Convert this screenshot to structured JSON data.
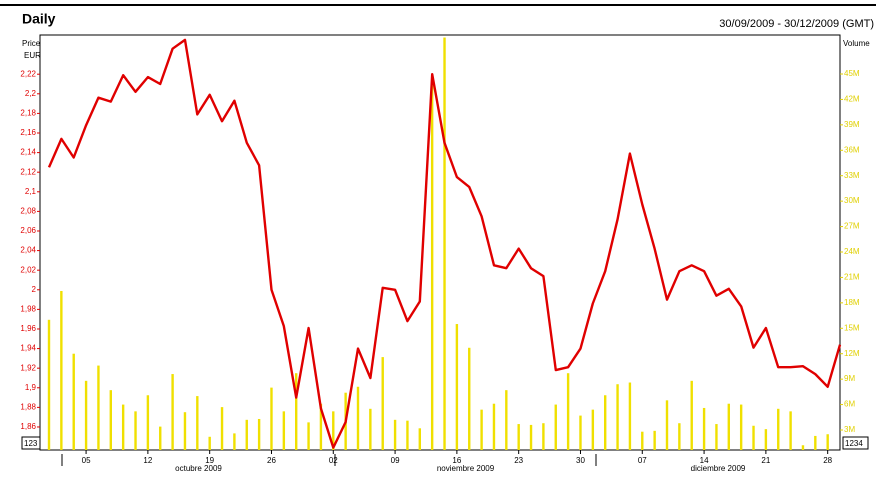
{
  "chart_data": {
    "type": "combo",
    "title": "Daily",
    "subtitle": "30/09/2009 - 30/12/2009 (GMT)",
    "y_unit": "EUR",
    "months": [
      "octubre 2009",
      "noviembre 2009",
      "diciembre 2009"
    ],
    "corner_labels": [
      "123",
      "1234"
    ],
    "categories": [
      null,
      null,
      null,
      "05",
      null,
      null,
      null,
      null,
      "12",
      null,
      null,
      null,
      null,
      "19",
      null,
      null,
      null,
      null,
      "26",
      null,
      null,
      null,
      null,
      "02",
      null,
      null,
      null,
      null,
      "09",
      null,
      null,
      null,
      null,
      "16",
      null,
      null,
      null,
      null,
      "23",
      null,
      null,
      null,
      null,
      "30",
      null,
      null,
      null,
      null,
      "07",
      null,
      null,
      null,
      null,
      "14",
      null,
      null,
      null,
      null,
      "21",
      null,
      null,
      null,
      null,
      "28",
      null
    ],
    "series": [
      {
        "name": "Price",
        "type": "line",
        "color": "#e00000",
        "values": [
          2.125,
          2.154,
          2.135,
          2.168,
          2.196,
          2.192,
          2.219,
          2.202,
          2.217,
          2.21,
          2.246,
          2.255,
          2.179,
          2.199,
          2.172,
          2.193,
          2.15,
          2.127,
          2.0,
          1.963,
          1.89,
          1.961,
          1.879,
          1.839,
          1.865,
          1.94,
          1.91,
          2.002,
          2.0,
          1.968,
          1.988,
          2.22,
          2.15,
          2.115,
          2.105,
          2.075,
          2.025,
          2.022,
          2.042,
          2.022,
          2.014,
          1.918,
          1.921,
          1.94,
          1.986,
          2.019,
          2.072,
          2.139,
          2.087,
          2.042,
          1.99,
          2.019,
          2.025,
          2.019,
          1.994,
          2.001,
          1.983,
          1.941,
          1.961,
          1.921,
          1.921,
          1.922,
          1.914,
          1.901,
          1.944
        ]
      },
      {
        "name": "Volume",
        "type": "bar",
        "axis": "y2",
        "color": "#f0e000",
        "values": [
          16000000,
          19400000,
          12000000,
          8800000,
          10600000,
          7700000,
          6000000,
          5200000,
          7100000,
          3400000,
          9600000,
          5100000,
          7000000,
          2200000,
          5700000,
          2600000,
          4200000,
          4300000,
          8000000,
          5200000,
          9700000,
          3900000,
          6100000,
          5200000,
          7400000,
          8100000,
          5500000,
          11600000,
          4200000,
          4100000,
          3200000,
          44300000,
          49300000,
          15500000,
          12700000,
          5400000,
          6100000,
          7700000,
          3700000,
          3600000,
          3800000,
          6000000,
          9700000,
          4700000,
          5400000,
          7100000,
          8400000,
          8600000,
          2800000,
          2900000,
          6500000,
          3800000,
          8800000,
          5600000,
          3700000,
          6100000,
          6000000,
          3500000,
          3100000,
          5500000,
          5200000,
          1200000,
          2300000,
          2500000,
          null
        ]
      }
    ],
    "ylim": [
      1.8365,
      2.26
    ],
    "yticks": [
      {
        "value": 1.86,
        "label": "1,86"
      },
      {
        "value": 1.88,
        "label": "1,88"
      },
      {
        "value": 1.9,
        "label": "1,9"
      },
      {
        "value": 1.92,
        "label": "1,92"
      },
      {
        "value": 1.94,
        "label": "1,94"
      },
      {
        "value": 1.96,
        "label": "1,96"
      },
      {
        "value": 1.98,
        "label": "1,98"
      },
      2,
      {
        "value": 2.02,
        "label": "2,02"
      },
      {
        "value": 2.04,
        "label": "2,04"
      },
      {
        "value": 2.06,
        "label": "2,06"
      },
      {
        "value": 2.08,
        "label": "2,08"
      },
      {
        "value": 2.1,
        "label": "2,1"
      },
      {
        "value": 2.12,
        "label": "2,12"
      },
      {
        "value": 2.14,
        "label": "2,14"
      },
      {
        "value": 2.16,
        "label": "2,16"
      },
      {
        "value": 2.18,
        "label": "2,18"
      },
      {
        "value": 2.2,
        "label": "2,2"
      },
      {
        "value": 2.22,
        "label": "2,22"
      }
    ],
    "y2lim": [
      640000,
      49600000
    ],
    "y2ticks": [
      {
        "value": 3000000,
        "label": "3M"
      },
      {
        "value": 6000000,
        "label": "6M"
      },
      {
        "value": 9000000,
        "label": "9M"
      },
      {
        "value": 12000000,
        "label": "12M"
      },
      {
        "value": 15000000,
        "label": "15M"
      },
      {
        "value": 18000000,
        "label": "18M"
      },
      {
        "value": 21000000,
        "label": "21M"
      },
      {
        "value": 24000000,
        "label": "24M"
      },
      {
        "value": 27000000,
        "label": "27M"
      },
      {
        "value": 30000000,
        "label": "30M"
      },
      {
        "value": 33000000,
        "label": "33M"
      },
      {
        "value": 36000000,
        "label": "36M"
      },
      {
        "value": 39000000,
        "label": "39M"
      },
      {
        "value": 42000000,
        "label": "42M"
      },
      {
        "value": 45000000,
        "label": "45M"
      }
    ]
  }
}
